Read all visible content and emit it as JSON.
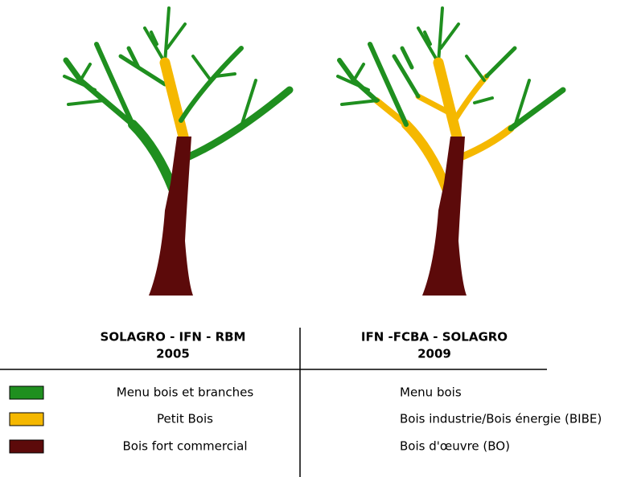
{
  "columns": [
    {
      "title": "SOLAGRO - IFN - RBM",
      "year": "2005"
    },
    {
      "title": "IFN -FCBA - SOLAGRO",
      "year": "2009"
    }
  ],
  "rows": [
    {
      "left": "Menu bois et branches",
      "right": "Menu bois"
    },
    {
      "left": "Petit Bois",
      "right": "Bois industrie/Bois énergie (BIBE)"
    },
    {
      "left": "Bois fort commercial",
      "right": "Bois d'œuvre (BO)"
    }
  ]
}
